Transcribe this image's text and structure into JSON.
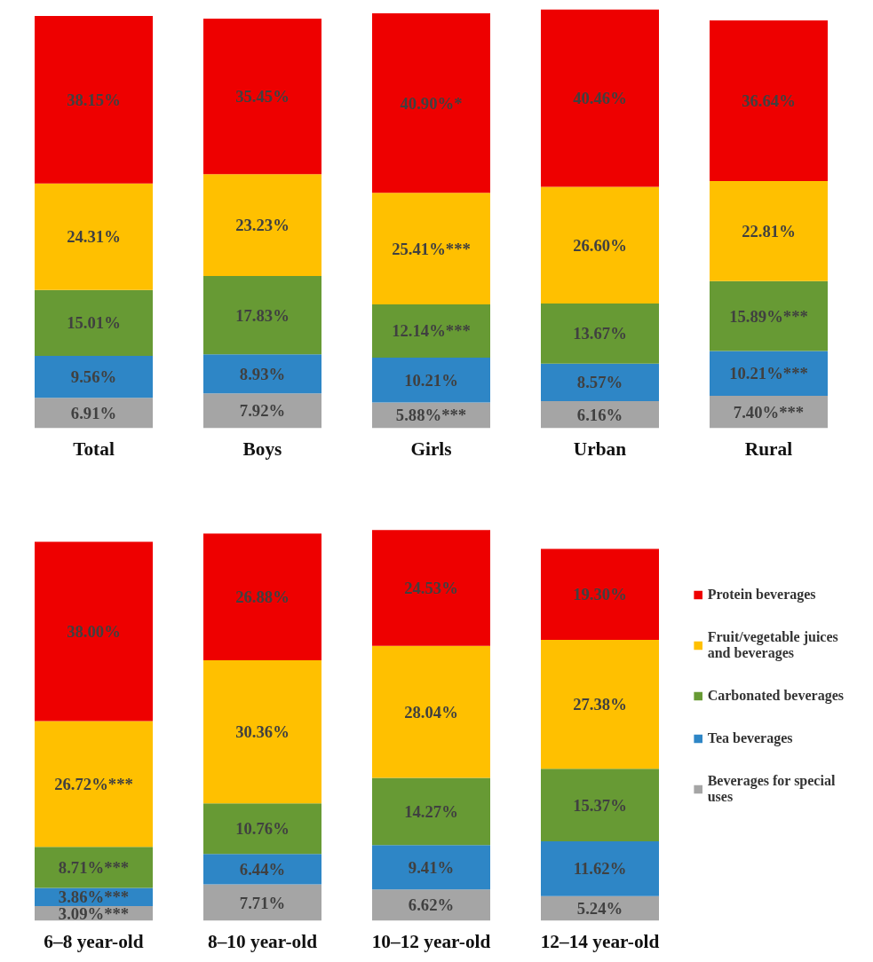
{
  "chart_data": [
    {
      "type": "bar",
      "stacked": true,
      "categories": [
        "Total",
        "Boys",
        "Girls",
        "Urban",
        "Rural"
      ],
      "tick_labels": "x",
      "legend": false,
      "series": [
        {
          "color": "#a5a5a5",
          "values": [
            6.91,
            7.92,
            5.88,
            6.16,
            7.4
          ],
          "value_labels": [
            "6.91%",
            "7.92%",
            "5.88%***",
            "6.16%",
            "7.40%***"
          ]
        },
        {
          "color": "#2e86c6",
          "values": [
            9.56,
            8.93,
            10.21,
            8.57,
            10.21
          ],
          "value_labels": [
            "9.56%",
            "8.93%",
            "10.21%",
            "8.57%",
            "10.21%***"
          ]
        },
        {
          "color": "#679a34",
          "values": [
            15.01,
            17.83,
            12.14,
            13.67,
            15.89
          ],
          "value_labels": [
            "15.01%",
            "17.83%",
            "12.14%***",
            "13.67%",
            "15.89%***"
          ]
        },
        {
          "color": "#ffc000",
          "values": [
            24.31,
            23.23,
            25.41,
            26.6,
            22.81
          ],
          "value_labels": [
            "24.31%",
            "23.23%",
            "25.41%***",
            "26.60%",
            "22.81%"
          ]
        },
        {
          "color": "#ee0000",
          "values": [
            38.15,
            35.45,
            40.9,
            40.46,
            36.64
          ],
          "value_labels": [
            "38.15%",
            "35.45%",
            "40.90%*",
            "40.46%",
            "36.64%"
          ]
        }
      ]
    },
    {
      "type": "bar",
      "stacked": true,
      "categories": [
        "6–8 year-old",
        "8–10 year-old",
        "10–12 year-old",
        "12–14 year-old"
      ],
      "tick_labels": "x",
      "legend": "right",
      "series": [
        {
          "name": "Beverages for special uses",
          "color": "#a5a5a5",
          "values": [
            3.09,
            7.71,
            6.62,
            5.24
          ],
          "value_labels": [
            "3.09%***",
            "7.71%",
            "6.62%",
            "5.24%"
          ]
        },
        {
          "name": "Tea beverages",
          "color": "#2e86c6",
          "values": [
            3.86,
            6.44,
            9.41,
            11.62
          ],
          "value_labels": [
            "3.86%***",
            "6.44%",
            "9.41%",
            "11.62%"
          ]
        },
        {
          "name": "Carbonated beverages",
          "color": "#679a34",
          "values": [
            8.71,
            10.76,
            14.27,
            15.37
          ],
          "value_labels": [
            "8.71%***",
            "10.76%",
            "14.27%",
            "15.37%"
          ]
        },
        {
          "name": "Fruit/vegetable juices and beverages",
          "color": "#ffc000",
          "values": [
            26.72,
            30.36,
            28.04,
            27.38
          ],
          "value_labels": [
            "26.72%***",
            "30.36%",
            "28.04%",
            "27.38%"
          ]
        },
        {
          "name": "Protein beverages",
          "color": "#ee0000",
          "values": [
            38.0,
            26.88,
            24.53,
            19.3
          ],
          "value_labels": [
            "38.00%",
            "26.88%",
            "24.53%",
            "19.30%"
          ]
        }
      ]
    }
  ]
}
